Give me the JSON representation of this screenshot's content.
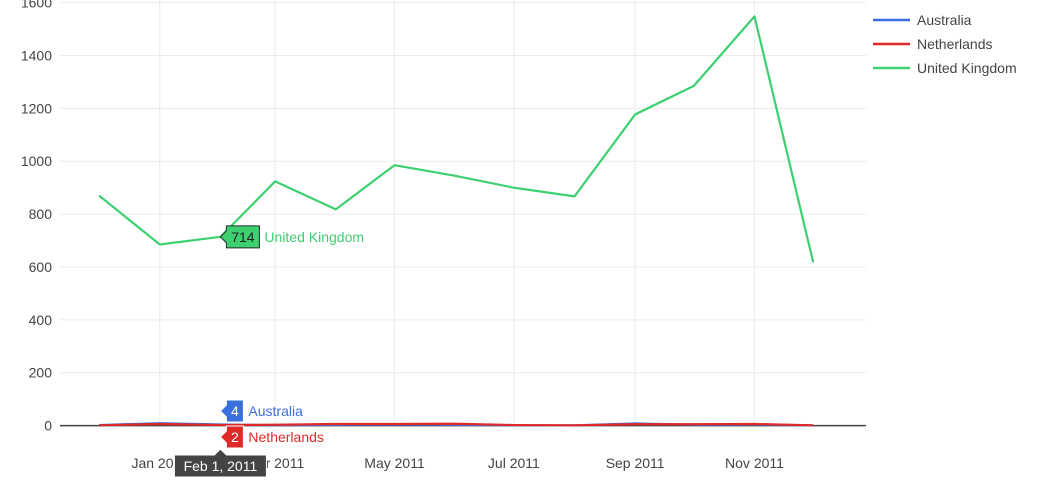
{
  "chart_data": {
    "type": "line",
    "title": "",
    "xlabel": "",
    "ylabel": "",
    "x": [
      "2010-12-01",
      "2011-01-01",
      "2011-02-01",
      "2011-03-01",
      "2011-04-01",
      "2011-05-01",
      "2011-06-01",
      "2011-07-01",
      "2011-08-01",
      "2011-09-01",
      "2011-10-01",
      "2011-11-01",
      "2011-12-01"
    ],
    "x_tick_values": [
      "2011-01-01",
      "2011-03-01",
      "2011-05-01",
      "2011-07-01",
      "2011-09-01",
      "2011-11-01"
    ],
    "x_tick_labels": [
      "Jan 2011",
      "Mar 2011",
      "May 2011",
      "Jul 2011",
      "Sep 2011",
      "Nov 2011"
    ],
    "xlim": [
      "2010-11-11",
      "2011-12-28"
    ],
    "ylim": [
      -100,
      1610
    ],
    "y_tick_values": [
      0,
      200,
      400,
      600,
      800,
      1000,
      1200,
      1400,
      1600
    ],
    "y_tick_labels": [
      "0",
      "200",
      "400",
      "600",
      "800",
      "1000",
      "1200",
      "1400",
      "1600"
    ],
    "grid": true,
    "legend_position": "top-right",
    "series": [
      {
        "name": "Australia",
        "color": "#3b6fe0",
        "values": [
          2,
          9,
          4,
          1,
          3,
          4,
          3,
          1,
          1,
          8,
          3,
          4,
          1
        ]
      },
      {
        "name": "Netherlands",
        "color": "#e02a2a",
        "values": [
          1,
          6,
          2,
          3,
          6,
          6,
          7,
          2,
          1,
          5,
          5,
          6,
          1
        ]
      },
      {
        "name": "United Kingdom",
        "color": "#3cd070",
        "values": [
          870,
          685,
          714,
          924,
          818,
          985,
          945,
          900,
          867,
          1177,
          1285,
          1548,
          618
        ]
      }
    ],
    "hover": {
      "x_label": "Feb 1, 2011",
      "x_value": "2011-02-01",
      "points": [
        {
          "series": "United Kingdom",
          "value_label": "714",
          "name_label": "United Kingdom"
        },
        {
          "series": "Australia",
          "value_label": "4",
          "name_label": "Australia"
        },
        {
          "series": "Netherlands",
          "value_label": "2",
          "name_label": "Netherlands"
        }
      ]
    }
  }
}
